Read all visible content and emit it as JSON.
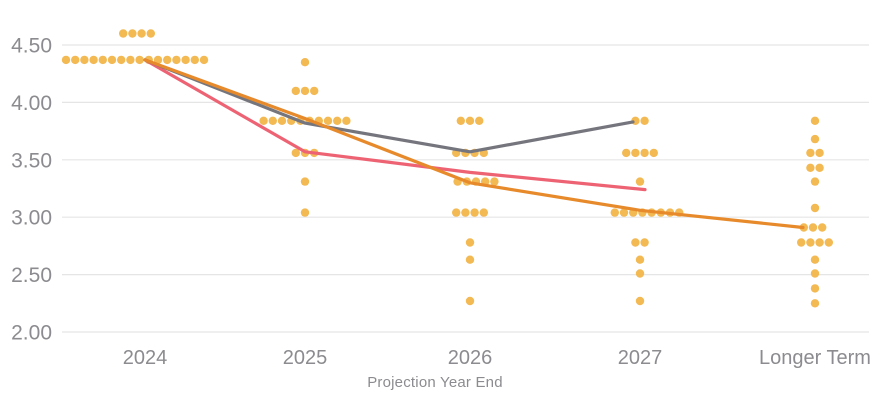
{
  "chart_data": {
    "type": "scatter",
    "title": "",
    "xlabel": "Projection Year End",
    "ylabel": "",
    "categories": [
      "2024",
      "2025",
      "2026",
      "2027",
      "Longer Term"
    ],
    "y_ticks": [
      "4.50",
      "4.00",
      "3.50",
      "3.00",
      "2.50",
      "2.00"
    ],
    "ylim": [
      2.0,
      4.72
    ],
    "grid": true,
    "legend": "none",
    "colors": {
      "dot": "#F2B54A",
      "gray_line": "#75757D",
      "red_line": "#EE6374",
      "orange_line": "#E78A2B",
      "axis_text": "#8C8C90",
      "gridline": "#E5E5E5"
    },
    "dot_clusters": [
      {
        "category": "2024",
        "rows": [
          {
            "value": 4.6,
            "count": 4,
            "dx": -8
          },
          {
            "value": 4.37,
            "count": 16,
            "dx": -10
          }
        ]
      },
      {
        "category": "2025",
        "rows": [
          {
            "value": 4.35,
            "count": 1
          },
          {
            "value": 4.1,
            "count": 3
          },
          {
            "value": 3.84,
            "count": 10
          },
          {
            "value": 3.56,
            "count": 3
          },
          {
            "value": 3.31,
            "count": 1
          },
          {
            "value": 3.04,
            "count": 1
          }
        ]
      },
      {
        "category": "2026",
        "rows": [
          {
            "value": 3.84,
            "count": 3
          },
          {
            "value": 3.56,
            "count": 4
          },
          {
            "value": 3.31,
            "count": 5,
            "dx": 6
          },
          {
            "value": 3.04,
            "count": 4
          },
          {
            "value": 2.78,
            "count": 1
          },
          {
            "value": 2.63,
            "count": 1
          },
          {
            "value": 2.27,
            "count": 1
          }
        ]
      },
      {
        "category": "2027",
        "rows": [
          {
            "value": 3.84,
            "count": 2
          },
          {
            "value": 3.56,
            "count": 4
          },
          {
            "value": 3.31,
            "count": 1
          },
          {
            "value": 3.04,
            "count": 8,
            "dx": 7
          },
          {
            "value": 2.78,
            "count": 2
          },
          {
            "value": 2.63,
            "count": 1
          },
          {
            "value": 2.51,
            "count": 1
          },
          {
            "value": 2.27,
            "count": 1
          }
        ]
      },
      {
        "category": "Longer Term",
        "rows": [
          {
            "value": 3.84,
            "count": 1
          },
          {
            "value": 3.68,
            "count": 1
          },
          {
            "value": 3.56,
            "count": 2
          },
          {
            "value": 3.43,
            "count": 2
          },
          {
            "value": 3.31,
            "count": 1
          },
          {
            "value": 3.08,
            "count": 1
          },
          {
            "value": 2.91,
            "count": 3,
            "dx": -2
          },
          {
            "value": 2.78,
            "count": 4
          },
          {
            "value": 2.63,
            "count": 1
          },
          {
            "value": 2.51,
            "count": 1
          },
          {
            "value": 2.38,
            "count": 1
          },
          {
            "value": 2.25,
            "count": 1
          }
        ]
      }
    ],
    "series": [
      {
        "name": "red-path",
        "color": "#EE6374",
        "points": [
          {
            "x": 0,
            "v": 4.37
          },
          {
            "x": 1,
            "v": 3.57
          },
          {
            "x": 2,
            "v": 3.39
          },
          {
            "x": 3,
            "v": 3.24,
            "dx": 5
          }
        ]
      },
      {
        "name": "gray-path",
        "color": "#75757D",
        "points": [
          {
            "x": 0,
            "v": 4.37
          },
          {
            "x": 1,
            "v": 3.82
          },
          {
            "x": 2,
            "v": 3.57
          },
          {
            "x": 3,
            "v": 3.83,
            "dx": -7
          }
        ]
      },
      {
        "name": "orange-path",
        "color": "#E78A2B",
        "points": [
          {
            "x": 0,
            "v": 4.37
          },
          {
            "x": 1,
            "v": 3.86
          },
          {
            "x": 2,
            "v": 3.3
          },
          {
            "x": 3,
            "v": 3.06
          },
          {
            "x": 4,
            "v": 2.91,
            "dx": -12
          }
        ]
      }
    ]
  }
}
